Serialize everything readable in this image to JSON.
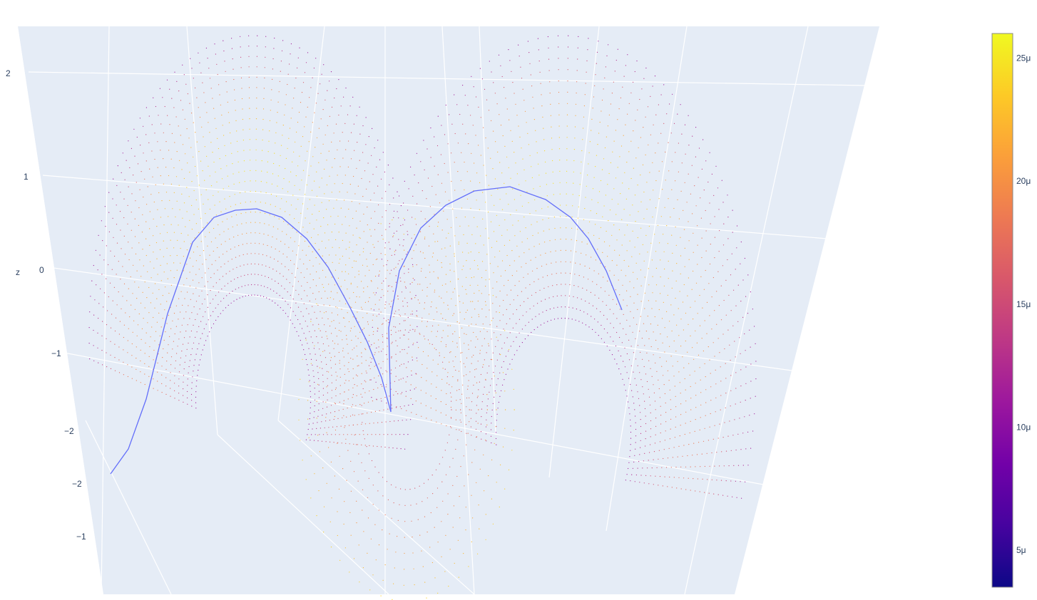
{
  "chart_data": {
    "type": "scatter3d",
    "axes": {
      "z": {
        "label": "z",
        "tick_labels": [
          "2",
          "1",
          "0",
          "−1",
          "−2",
          "−2",
          "−1"
        ]
      }
    },
    "grid": true,
    "scene_background": "#e5ecf6",
    "colorbar": {
      "colorscale": "plasma",
      "range": [
        3.5e-06,
        2.6e-05
      ],
      "tick_values": [
        5e-06,
        1e-05,
        1.5e-05,
        2e-05,
        2.5e-05
      ],
      "tick_labels": [
        "5μ",
        "10μ",
        "15μ",
        "20μ",
        "25μ"
      ],
      "colors": [
        "#0d0887",
        "#46039f",
        "#7201a8",
        "#9c179e",
        "#bd3786",
        "#d8576b",
        "#ed7953",
        "#fb9f3a",
        "#fdca26",
        "#f0f921"
      ]
    },
    "series": [
      {
        "kind": "points",
        "description_color": "colored by colorscale",
        "surface": "double-lobed wave surface"
      },
      {
        "kind": "line",
        "color": "#636efa"
      }
    ]
  }
}
